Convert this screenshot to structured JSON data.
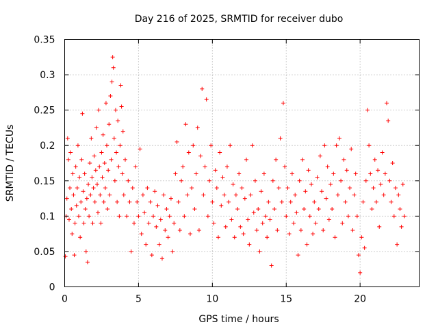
{
  "chart_data": {
    "type": "scatter",
    "title": "Day 216 of 2025, SRMTID for receiver dubo",
    "xlabel": "GPS time / hours",
    "ylabel": "SRMTID / TECUs",
    "xlim": [
      0,
      24
    ],
    "ylim": [
      0,
      0.35
    ],
    "xticks": [
      0,
      5,
      10,
      15,
      20
    ],
    "xtick_labels": [
      "0",
      "5",
      "10",
      "15",
      "20"
    ],
    "yticks": [
      0,
      0.05,
      0.1,
      0.15,
      0.2,
      0.25,
      0.3,
      0.35
    ],
    "ytick_labels": [
      "0",
      "0.05",
      "0.1",
      "0.15",
      "0.2",
      "0.25",
      "0.3",
      "0.35"
    ],
    "grid": true,
    "marker": "+",
    "color": "#ff0000",
    "series": [
      {
        "name": "SRMTID",
        "points": [
          [
            0.05,
            0.043
          ],
          [
            0.1,
            0.1
          ],
          [
            0.15,
            0.125
          ],
          [
            0.2,
            0.21
          ],
          [
            0.25,
            0.18
          ],
          [
            0.3,
            0.095
          ],
          [
            0.35,
            0.14
          ],
          [
            0.4,
            0.19
          ],
          [
            0.45,
            0.11
          ],
          [
            0.5,
            0.075
          ],
          [
            0.55,
            0.16
          ],
          [
            0.6,
            0.13
          ],
          [
            0.65,
            0.045
          ],
          [
            0.7,
            0.09
          ],
          [
            0.75,
            0.17
          ],
          [
            0.8,
            0.115
          ],
          [
            0.85,
            0.14
          ],
          [
            0.9,
            0.2
          ],
          [
            0.95,
            0.1
          ],
          [
            1.0,
            0.155
          ],
          [
            1.05,
            0.07
          ],
          [
            1.1,
            0.12
          ],
          [
            1.15,
            0.18
          ],
          [
            1.2,
            0.245
          ],
          [
            1.25,
            0.135
          ],
          [
            1.3,
            0.09
          ],
          [
            1.35,
            0.16
          ],
          [
            1.4,
            0.11
          ],
          [
            1.45,
            0.05
          ],
          [
            1.5,
            0.125
          ],
          [
            1.55,
            0.035
          ],
          [
            1.6,
            0.145
          ],
          [
            1.65,
            0.1
          ],
          [
            1.7,
            0.175
          ],
          [
            1.75,
            0.13
          ],
          [
            1.8,
            0.21
          ],
          [
            1.85,
            0.155
          ],
          [
            1.9,
            0.09
          ],
          [
            1.95,
            0.14
          ],
          [
            2.0,
            0.185
          ],
          [
            2.05,
            0.12
          ],
          [
            2.1,
            0.165
          ],
          [
            2.15,
            0.225
          ],
          [
            2.2,
            0.145
          ],
          [
            2.25,
            0.105
          ],
          [
            2.3,
            0.25
          ],
          [
            2.35,
            0.17
          ],
          [
            2.4,
            0.13
          ],
          [
            2.45,
            0.09
          ],
          [
            2.5,
            0.19
          ],
          [
            2.55,
            0.155
          ],
          [
            2.6,
            0.215
          ],
          [
            2.65,
            0.12
          ],
          [
            2.7,
            0.175
          ],
          [
            2.75,
            0.14
          ],
          [
            2.8,
            0.26
          ],
          [
            2.85,
            0.2
          ],
          [
            2.9,
            0.11
          ],
          [
            2.95,
            0.165
          ],
          [
            3.0,
            0.23
          ],
          [
            3.05,
            0.13
          ],
          [
            3.1,
            0.27
          ],
          [
            3.15,
            0.18
          ],
          [
            3.2,
            0.29
          ],
          [
            3.25,
            0.325
          ],
          [
            3.3,
            0.31
          ],
          [
            3.35,
            0.21
          ],
          [
            3.4,
            0.15
          ],
          [
            3.45,
            0.25
          ],
          [
            3.5,
            0.19
          ],
          [
            3.55,
            0.12
          ],
          [
            3.6,
            0.235
          ],
          [
            3.65,
            0.17
          ],
          [
            3.7,
            0.1
          ],
          [
            3.75,
            0.2
          ],
          [
            3.8,
            0.285
          ],
          [
            3.85,
            0.255
          ],
          [
            3.9,
            0.16
          ],
          [
            3.95,
            0.22
          ],
          [
            4.0,
            0.13
          ],
          [
            4.1,
            0.18
          ],
          [
            4.2,
            0.1
          ],
          [
            4.3,
            0.15
          ],
          [
            4.4,
            0.12
          ],
          [
            4.5,
            0.05
          ],
          [
            4.6,
            0.14
          ],
          [
            4.7,
            0.09
          ],
          [
            4.8,
            0.17
          ],
          [
            4.9,
            0.12
          ],
          [
            5.0,
            0.1
          ],
          [
            5.1,
            0.195
          ],
          [
            5.2,
            0.075
          ],
          [
            5.3,
            0.13
          ],
          [
            5.4,
            0.105
          ],
          [
            5.5,
            0.06
          ],
          [
            5.6,
            0.14
          ],
          [
            5.7,
            0.09
          ],
          [
            5.8,
            0.12
          ],
          [
            5.9,
            0.045
          ],
          [
            6.0,
            0.1
          ],
          [
            6.1,
            0.135
          ],
          [
            6.2,
            0.085
          ],
          [
            6.3,
            0.115
          ],
          [
            6.4,
            0.06
          ],
          [
            6.5,
            0.095
          ],
          [
            6.6,
            0.04
          ],
          [
            6.7,
            0.13
          ],
          [
            6.8,
            0.08
          ],
          [
            6.9,
            0.11
          ],
          [
            7.0,
            0.07
          ],
          [
            7.1,
            0.1
          ],
          [
            7.2,
            0.125
          ],
          [
            7.3,
            0.05
          ],
          [
            7.4,
            0.09
          ],
          [
            7.5,
            0.16
          ],
          [
            7.6,
            0.205
          ],
          [
            7.7,
            0.12
          ],
          [
            7.8,
            0.08
          ],
          [
            7.9,
            0.15
          ],
          [
            8.0,
            0.17
          ],
          [
            8.1,
            0.1
          ],
          [
            8.2,
            0.23
          ],
          [
            8.3,
            0.13
          ],
          [
            8.4,
            0.19
          ],
          [
            8.5,
            0.075
          ],
          [
            8.6,
            0.14
          ],
          [
            8.7,
            0.2
          ],
          [
            8.8,
            0.11
          ],
          [
            8.9,
            0.16
          ],
          [
            9.0,
            0.225
          ],
          [
            9.1,
            0.08
          ],
          [
            9.2,
            0.185
          ],
          [
            9.3,
            0.28
          ],
          [
            9.4,
            0.13
          ],
          [
            9.5,
            0.17
          ],
          [
            9.6,
            0.265
          ],
          [
            9.7,
            0.1
          ],
          [
            9.8,
            0.15
          ],
          [
            9.9,
            0.2
          ],
          [
            10.0,
            0.12
          ],
          [
            10.1,
            0.09
          ],
          [
            10.2,
            0.165
          ],
          [
            10.3,
            0.14
          ],
          [
            10.4,
            0.07
          ],
          [
            10.5,
            0.19
          ],
          [
            10.6,
            0.115
          ],
          [
            10.7,
            0.155
          ],
          [
            10.8,
            0.13
          ],
          [
            10.9,
            0.085
          ],
          [
            11.0,
            0.17
          ],
          [
            11.1,
            0.12
          ],
          [
            11.2,
            0.2
          ],
          [
            11.3,
            0.095
          ],
          [
            11.4,
            0.145
          ],
          [
            11.5,
            0.07
          ],
          [
            11.6,
            0.13
          ],
          [
            11.7,
            0.11
          ],
          [
            11.8,
            0.16
          ],
          [
            11.9,
            0.085
          ],
          [
            12.0,
            0.14
          ],
          [
            12.1,
            0.075
          ],
          [
            12.2,
            0.125
          ],
          [
            12.3,
            0.18
          ],
          [
            12.4,
            0.095
          ],
          [
            12.5,
            0.06
          ],
          [
            12.6,
            0.13
          ],
          [
            12.7,
            0.2
          ],
          [
            12.8,
            0.105
          ],
          [
            12.9,
            0.15
          ],
          [
            13.0,
            0.08
          ],
          [
            13.1,
            0.11
          ],
          [
            13.2,
            0.05
          ],
          [
            13.3,
            0.135
          ],
          [
            13.4,
            0.09
          ],
          [
            13.5,
            0.16
          ],
          [
            13.6,
            0.1
          ],
          [
            13.7,
            0.07
          ],
          [
            13.8,
            0.12
          ],
          [
            13.9,
            0.095
          ],
          [
            14.0,
            0.03
          ],
          [
            14.1,
            0.15
          ],
          [
            14.2,
            0.11
          ],
          [
            14.3,
            0.18
          ],
          [
            14.4,
            0.08
          ],
          [
            14.5,
            0.14
          ],
          [
            14.6,
            0.21
          ],
          [
            14.7,
            0.12
          ],
          [
            14.8,
            0.26
          ],
          [
            14.9,
            0.17
          ],
          [
            15.0,
            0.1
          ],
          [
            15.1,
            0.14
          ],
          [
            15.2,
            0.075
          ],
          [
            15.3,
            0.12
          ],
          [
            15.4,
            0.16
          ],
          [
            15.5,
            0.09
          ],
          [
            15.6,
            0.13
          ],
          [
            15.7,
            0.105
          ],
          [
            15.8,
            0.045
          ],
          [
            15.9,
            0.15
          ],
          [
            16.0,
            0.08
          ],
          [
            16.1,
            0.18
          ],
          [
            16.2,
            0.11
          ],
          [
            16.3,
            0.135
          ],
          [
            16.4,
            0.06
          ],
          [
            16.5,
            0.165
          ],
          [
            16.6,
            0.1
          ],
          [
            16.7,
            0.145
          ],
          [
            16.8,
            0.075
          ],
          [
            16.9,
            0.12
          ],
          [
            17.0,
            0.09
          ],
          [
            17.1,
            0.155
          ],
          [
            17.2,
            0.11
          ],
          [
            17.3,
            0.185
          ],
          [
            17.4,
            0.135
          ],
          [
            17.5,
            0.08
          ],
          [
            17.6,
            0.2
          ],
          [
            17.7,
            0.125
          ],
          [
            17.8,
            0.17
          ],
          [
            17.9,
            0.095
          ],
          [
            18.0,
            0.145
          ],
          [
            18.1,
            0.11
          ],
          [
            18.2,
            0.16
          ],
          [
            18.3,
            0.07
          ],
          [
            18.4,
            0.2
          ],
          [
            18.5,
            0.13
          ],
          [
            18.6,
            0.21
          ],
          [
            18.7,
            0.15
          ],
          [
            18.8,
            0.09
          ],
          [
            18.9,
            0.18
          ],
          [
            19.0,
            0.12
          ],
          [
            19.1,
            0.165
          ],
          [
            19.2,
            0.1
          ],
          [
            19.3,
            0.14
          ],
          [
            19.4,
            0.195
          ],
          [
            19.5,
            0.08
          ],
          [
            19.6,
            0.13
          ],
          [
            19.7,
            0.16
          ],
          [
            19.8,
            0.1
          ],
          [
            19.9,
            0.045
          ],
          [
            20.0,
            0.02
          ],
          [
            20.1,
            0.07
          ],
          [
            20.2,
            0.12
          ],
          [
            20.3,
            0.055
          ],
          [
            20.4,
            0.15
          ],
          [
            20.5,
            0.25
          ],
          [
            20.6,
            0.2
          ],
          [
            20.7,
            0.16
          ],
          [
            20.8,
            0.11
          ],
          [
            20.9,
            0.14
          ],
          [
            21.0,
            0.18
          ],
          [
            21.1,
            0.12
          ],
          [
            21.2,
            0.165
          ],
          [
            21.3,
            0.085
          ],
          [
            21.4,
            0.145
          ],
          [
            21.5,
            0.19
          ],
          [
            21.6,
            0.13
          ],
          [
            21.7,
            0.16
          ],
          [
            21.8,
            0.26
          ],
          [
            21.9,
            0.235
          ],
          [
            22.0,
            0.15
          ],
          [
            22.1,
            0.12
          ],
          [
            22.2,
            0.175
          ],
          [
            22.3,
            0.1
          ],
          [
            22.4,
            0.14
          ],
          [
            22.5,
            0.06
          ],
          [
            22.6,
            0.13
          ],
          [
            22.7,
            0.11
          ],
          [
            22.8,
            0.085
          ],
          [
            22.9,
            0.145
          ],
          [
            23.0,
            0.1
          ]
        ]
      }
    ]
  }
}
